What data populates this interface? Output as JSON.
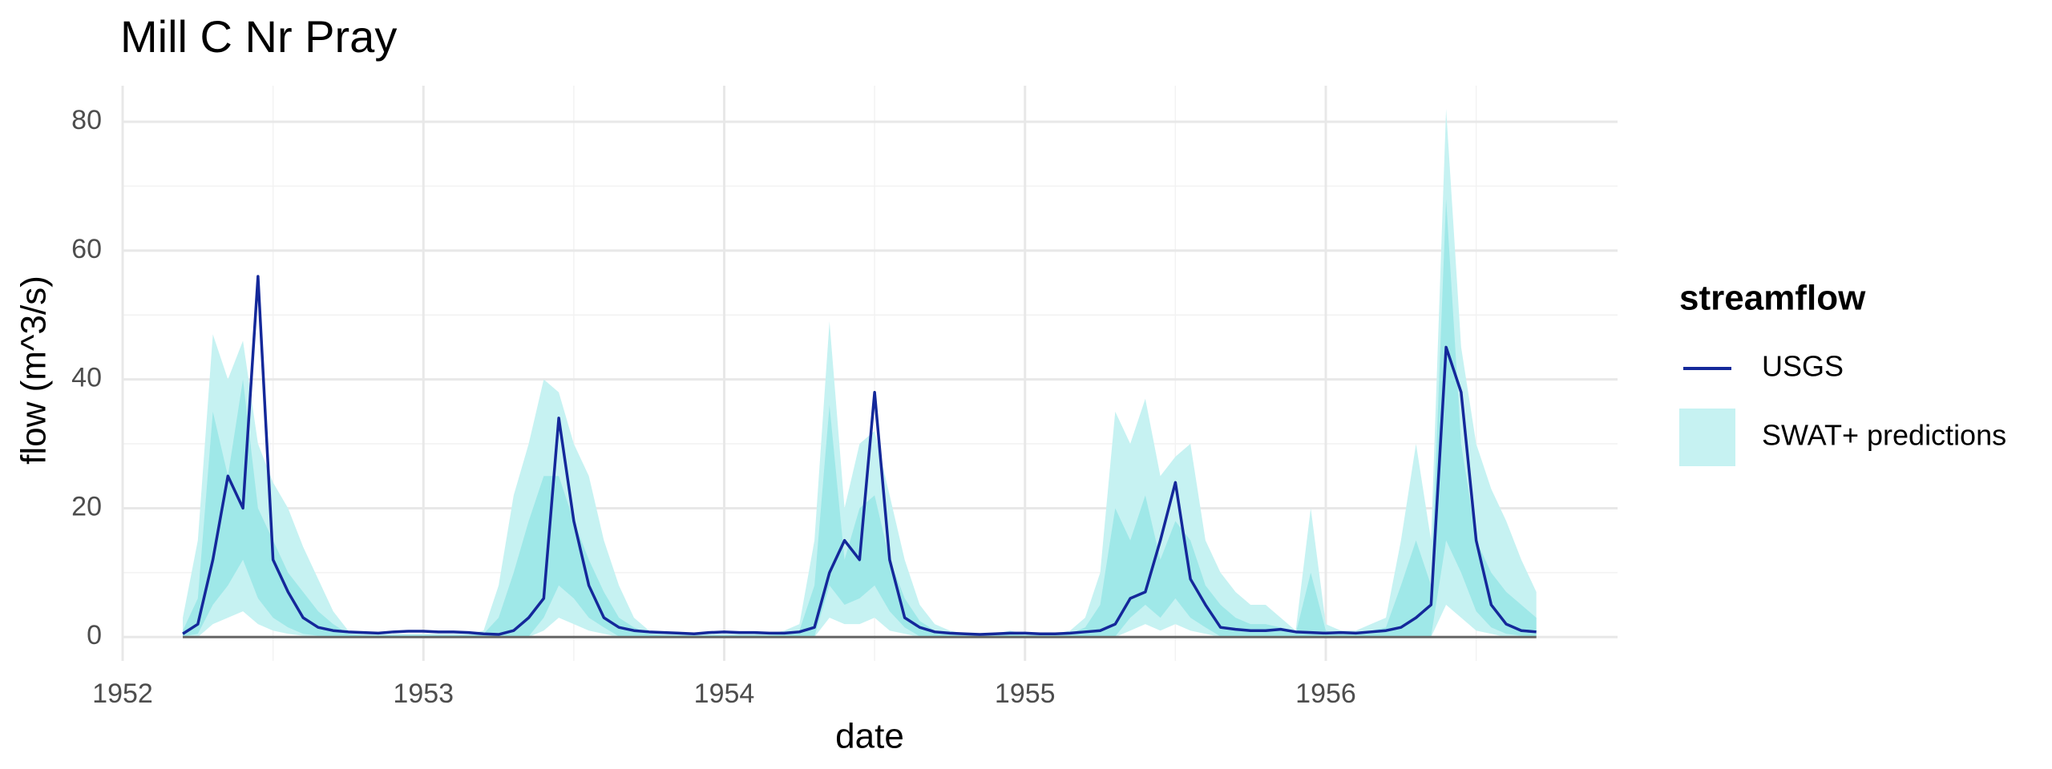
{
  "chart_data": {
    "type": "line",
    "title": "Mill C Nr Pray",
    "x_label": "date",
    "y_label": "flow (m^3/s)",
    "legend_title": "streamflow",
    "legend_position": "right",
    "grid": true,
    "xlim": [
      1952,
      1956.97
    ],
    "ylim": [
      -3.7,
      85.6
    ],
    "xticks": [
      1952,
      1953,
      1954,
      1955,
      1956
    ],
    "yticks": [
      0,
      20,
      40,
      60,
      80
    ],
    "minor_xticks": [
      1952.5,
      1953.5,
      1954.5,
      1955.5,
      1956.5
    ],
    "minor_yticks": [
      10,
      30,
      50,
      70
    ],
    "hline": 0,
    "x": [
      1952.2,
      1952.25,
      1952.3,
      1952.35,
      1952.4,
      1952.45,
      1952.5,
      1952.55,
      1952.6,
      1952.65,
      1952.7,
      1952.75,
      1952.8,
      1952.85,
      1952.9,
      1952.95,
      1953,
      1953.05,
      1953.1,
      1953.15,
      1953.2,
      1953.25,
      1953.3,
      1953.35,
      1953.4,
      1953.45,
      1953.5,
      1953.55,
      1953.6,
      1953.65,
      1953.7,
      1953.75,
      1953.8,
      1953.85,
      1953.9,
      1953.95,
      1954,
      1954.05,
      1954.1,
      1954.15,
      1954.2,
      1954.25,
      1954.3,
      1954.35,
      1954.4,
      1954.45,
      1954.5,
      1954.55,
      1954.6,
      1954.65,
      1954.7,
      1954.75,
      1954.8,
      1954.85,
      1954.9,
      1954.95,
      1955,
      1955.05,
      1955.1,
      1955.15,
      1955.2,
      1955.25,
      1955.3,
      1955.35,
      1955.4,
      1955.45,
      1955.5,
      1955.55,
      1955.6,
      1955.65,
      1955.7,
      1955.75,
      1955.8,
      1955.85,
      1955.9,
      1955.95,
      1956,
      1956.05,
      1956.1,
      1956.15,
      1956.2,
      1956.25,
      1956.3,
      1956.35,
      1956.4,
      1956.45,
      1956.5,
      1956.55,
      1956.6,
      1956.65,
      1956.7
    ],
    "series": [
      {
        "name": "USGS",
        "color": "#14289a",
        "values": [
          0.5,
          2,
          12,
          25,
          20,
          56,
          12,
          7,
          3,
          1.5,
          1,
          0.8,
          0.7,
          0.6,
          0.8,
          0.9,
          0.9,
          0.8,
          0.8,
          0.7,
          0.5,
          0.4,
          1,
          3,
          6,
          34,
          18,
          8,
          3,
          1.5,
          1,
          0.8,
          0.7,
          0.6,
          0.5,
          0.7,
          0.8,
          0.7,
          0.7,
          0.6,
          0.6,
          0.8,
          1.5,
          10,
          15,
          12,
          38,
          12,
          3,
          1.5,
          0.8,
          0.6,
          0.5,
          0.4,
          0.5,
          0.6,
          0.6,
          0.5,
          0.5,
          0.6,
          0.8,
          1,
          2,
          6,
          7,
          15,
          24,
          9,
          5,
          1.5,
          1.2,
          1,
          1,
          1.2,
          0.8,
          0.7,
          0.6,
          0.7,
          0.6,
          0.8,
          1,
          1.5,
          3,
          5,
          45,
          38,
          15,
          5,
          2,
          1,
          0.8
        ]
      },
      {
        "name": "SWAT+ predictions",
        "color": "#c6f2f2",
        "inner_color": "#9fe8e8",
        "upper": [
          3,
          15,
          47,
          40,
          46,
          30,
          24,
          20,
          14,
          9,
          4,
          1,
          0.5,
          0.5,
          0.5,
          0.5,
          0.5,
          0.5,
          0.5,
          0.5,
          1,
          8,
          22,
          30,
          40,
          38,
          30,
          25,
          15,
          8,
          3,
          1,
          0.5,
          0.5,
          0.5,
          0.5,
          0.5,
          0.5,
          0.5,
          0.5,
          1,
          2,
          15,
          49,
          20,
          30,
          32,
          22,
          12,
          5,
          2,
          1,
          0.5,
          0.5,
          0.5,
          1,
          0.5,
          0.5,
          0.5,
          1,
          3,
          10,
          35,
          30,
          37,
          25,
          28,
          30,
          15,
          10,
          7,
          5,
          5,
          3,
          1,
          20,
          2,
          1,
          1,
          2,
          3,
          15,
          30,
          15,
          82,
          45,
          30,
          23,
          18,
          12,
          7
        ],
        "lower": [
          0,
          0,
          2,
          3,
          4,
          2,
          1,
          0.5,
          0.2,
          0,
          0,
          0,
          0,
          0,
          0,
          0,
          0,
          0,
          0,
          0,
          0,
          0,
          0,
          0,
          1,
          3,
          2,
          1,
          0.5,
          0,
          0,
          0,
          0,
          0,
          0,
          0,
          0,
          0,
          0,
          0,
          0,
          0,
          0,
          3,
          2,
          2,
          3,
          1,
          0.5,
          0,
          0,
          0,
          0,
          0,
          0,
          0,
          0,
          0,
          0,
          0,
          0,
          0,
          0,
          1,
          2,
          1,
          2,
          1,
          0.5,
          0,
          0,
          0,
          0,
          0,
          0,
          0,
          0,
          0,
          0,
          0,
          0,
          0,
          0,
          0,
          5,
          3,
          1,
          0.5,
          0,
          0,
          0
        ],
        "inner_upper": [
          1,
          6,
          35,
          25,
          40,
          20,
          15,
          10,
          7,
          4,
          2,
          0.5,
          0.3,
          0.3,
          0.3,
          0.3,
          0.3,
          0.3,
          0.3,
          0.3,
          0.5,
          3,
          10,
          18,
          25,
          25,
          18,
          12,
          7,
          3,
          1.5,
          0.5,
          0.3,
          0.3,
          0.3,
          0.3,
          0.3,
          0.3,
          0.3,
          0.3,
          0.5,
          1,
          8,
          36,
          12,
          20,
          22,
          12,
          6,
          2.5,
          1,
          0.5,
          0.3,
          0.3,
          0.3,
          0.5,
          0.3,
          0.3,
          0.3,
          0.5,
          1.5,
          5,
          20,
          15,
          22,
          12,
          18,
          15,
          8,
          5,
          3,
          2,
          2,
          1.5,
          0.5,
          10,
          1,
          0.5,
          0.5,
          1,
          1.5,
          8,
          15,
          8,
          68,
          30,
          15,
          10,
          7,
          5,
          3
        ],
        "inner_lower": [
          0.1,
          0.5,
          5,
          8,
          12,
          6,
          3,
          1.5,
          0.5,
          0.2,
          0.1,
          0.1,
          0.1,
          0.1,
          0.1,
          0.1,
          0.1,
          0.1,
          0.1,
          0.1,
          0.1,
          0.1,
          0.1,
          0.1,
          3,
          8,
          6,
          3,
          1.5,
          0.1,
          0.1,
          0.1,
          0.1,
          0.1,
          0.1,
          0.1,
          0.1,
          0.1,
          0.1,
          0.1,
          0.1,
          0.1,
          0.1,
          8,
          5,
          6,
          8,
          4,
          1.5,
          0.1,
          0.1,
          0.1,
          0.1,
          0.1,
          0.1,
          0.1,
          0.1,
          0.1,
          0.1,
          0.1,
          0.1,
          0.1,
          0.1,
          3,
          5,
          3,
          6,
          3,
          1.5,
          0.1,
          0.1,
          0.1,
          0.1,
          0.1,
          0.1,
          0.1,
          0.1,
          0.1,
          0.1,
          0.1,
          0.1,
          0.1,
          0.1,
          0.1,
          15,
          10,
          4,
          1.5,
          0.5,
          0.2,
          0.1
        ]
      }
    ]
  }
}
